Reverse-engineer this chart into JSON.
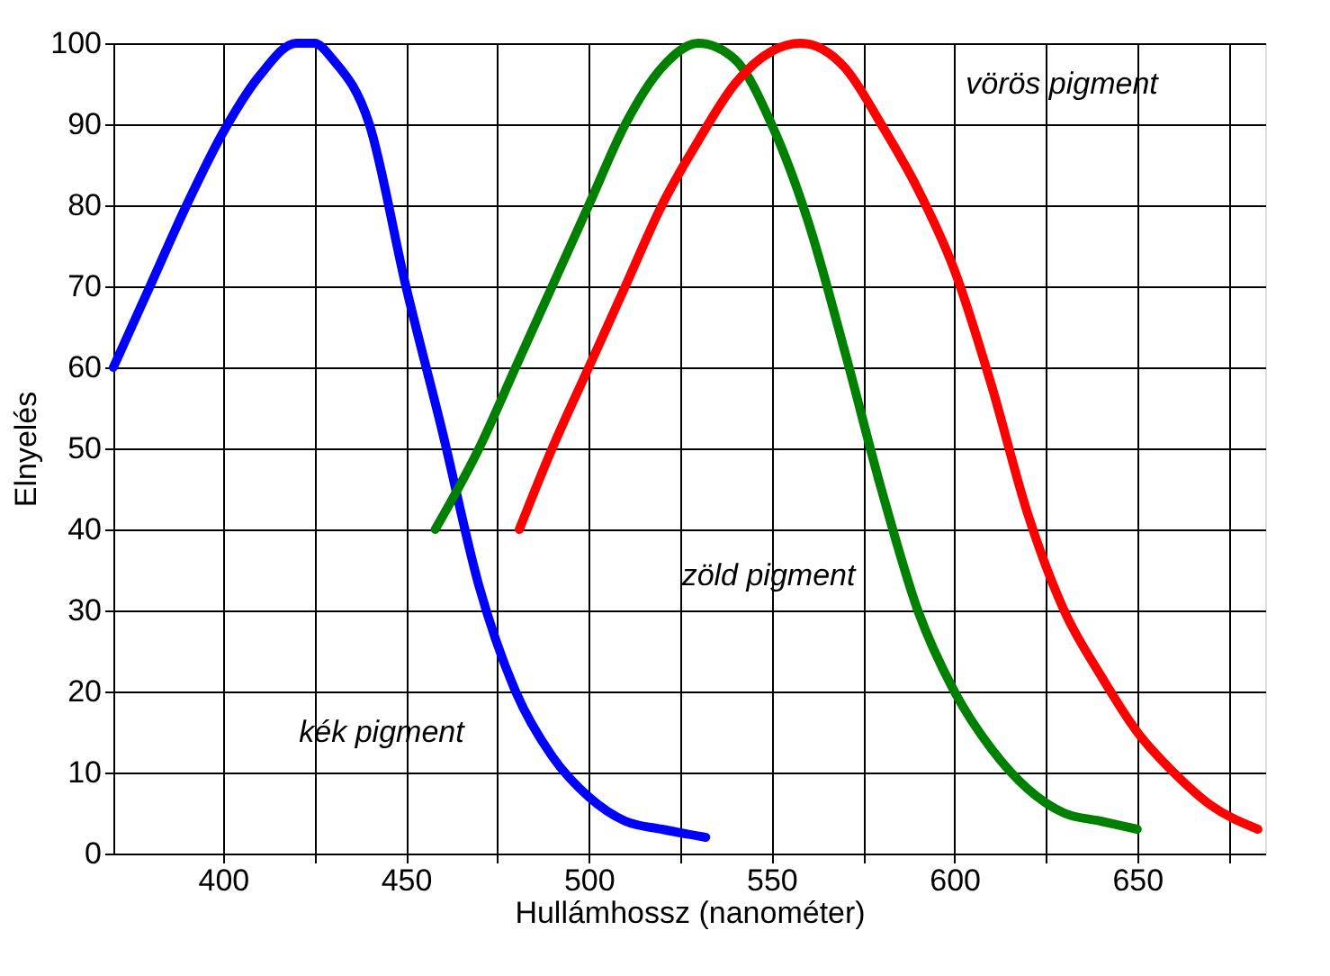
{
  "chart_data": {
    "type": "line",
    "xlabel": "Hullámhossz (nanométer)",
    "ylabel": "Elnyelés",
    "xlim": [
      370,
      685
    ],
    "ylim": [
      0,
      100
    ],
    "xticks": [
      400,
      {
        "value": 425,
        "label": null
      },
      450,
      {
        "value": 475,
        "label": null
      },
      500,
      {
        "value": 525,
        "label": null
      },
      550,
      {
        "value": 575,
        "label": null
      },
      600,
      {
        "value": 625,
        "label": null
      },
      650,
      {
        "value": 675,
        "label": null
      }
    ],
    "yticks": [
      0,
      10,
      20,
      30,
      40,
      50,
      60,
      70,
      80,
      90,
      100
    ],
    "grid": true,
    "legend": false,
    "marker": "none",
    "line_style": "solid",
    "series": [
      {
        "name": "kék pigment",
        "color": "#0000ff",
        "x": [
          370,
          380,
          390,
          400,
          410,
          420,
          425,
          430,
          440,
          450,
          460,
          470,
          480,
          490,
          500,
          510,
          520,
          532
        ],
        "values": [
          60,
          70,
          80,
          89,
          96,
          100,
          100,
          98,
          90,
          70,
          52,
          33,
          20,
          12,
          7,
          4,
          3,
          2
        ]
      },
      {
        "name": "zöld pigment",
        "color": "#008000",
        "x": [
          458,
          470,
          480,
          490,
          500,
          510,
          520,
          530,
          540,
          550,
          560,
          570,
          580,
          590,
          600,
          610,
          620,
          630,
          640,
          650
        ],
        "values": [
          40,
          50,
          60,
          70,
          80,
          90,
          97,
          100,
          98,
          90,
          78,
          62,
          45,
          30,
          20,
          13,
          8,
          5,
          4,
          3
        ]
      },
      {
        "name": "vörös pigment",
        "color": "#ff0000",
        "x": [
          481,
          490,
          500,
          510,
          520,
          530,
          540,
          550,
          558,
          570,
          580,
          590,
          600,
          610,
          620,
          630,
          640,
          650,
          660,
          670,
          683
        ],
        "values": [
          40,
          50,
          60,
          70,
          80,
          88,
          95,
          99,
          100,
          97,
          90,
          82,
          72,
          58,
          42,
          30,
          22,
          15,
          10,
          6,
          3
        ]
      }
    ]
  }
}
